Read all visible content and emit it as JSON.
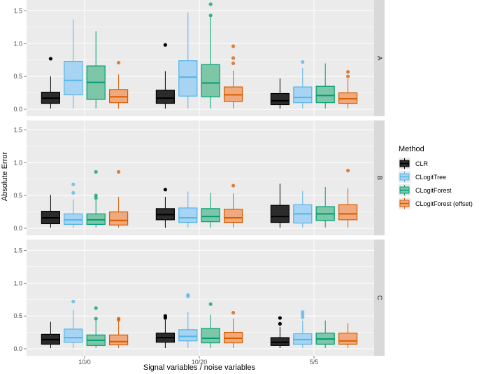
{
  "chart_data": {
    "type": "boxplot",
    "xlabel": "Signal variables / noise variables",
    "ylabel": "Absolute Error",
    "categories": [
      "10/0",
      "10/20",
      "5/5"
    ],
    "ylim": [
      0,
      1.6
    ],
    "yticks": [
      "0.0",
      "0.5",
      "1.0",
      "1.5"
    ],
    "legend": {
      "title": "Method",
      "position": "right",
      "items": [
        {
          "label": "CLR",
          "fill": "#2b2b2b",
          "stroke": "#000000"
        },
        {
          "label": "CLogitTree",
          "fill": "#a6d4f2",
          "stroke": "#56b4e9"
        },
        {
          "label": "CLogitForest",
          "fill": "#7dc6a8",
          "stroke": "#009e73"
        },
        {
          "label": "CLogitForest (offset)",
          "fill": "#f0a97c",
          "stroke": "#d55e00"
        }
      ]
    },
    "facets": [
      {
        "label": "A",
        "groups": [
          {
            "category": "10/0",
            "boxes": [
              {
                "q1": 0.09,
                "median": 0.17,
                "q3": 0.26,
                "lo": 0.01,
                "hi": 0.5,
                "outliers": [
                  0.77
                ]
              },
              {
                "q1": 0.22,
                "median": 0.44,
                "q3": 0.73,
                "lo": 0.01,
                "hi": 1.37,
                "outliers": []
              },
              {
                "q1": 0.15,
                "median": 0.41,
                "q3": 0.66,
                "lo": 0.01,
                "hi": 1.19,
                "outliers": []
              },
              {
                "q1": 0.1,
                "median": 0.19,
                "q3": 0.3,
                "lo": 0.01,
                "hi": 0.53,
                "outliers": [
                  0.71
                ]
              }
            ]
          },
          {
            "category": "10/20",
            "boxes": [
              {
                "q1": 0.09,
                "median": 0.17,
                "q3": 0.29,
                "lo": 0.01,
                "hi": 0.58,
                "outliers": [
                  0.98
                ]
              },
              {
                "q1": 0.2,
                "median": 0.49,
                "q3": 0.74,
                "lo": 0.01,
                "hi": 1.47,
                "outliers": []
              },
              {
                "q1": 0.19,
                "median": 0.4,
                "q3": 0.68,
                "lo": 0.01,
                "hi": 1.4,
                "outliers": [
                  1.43,
                  1.6
                ]
              },
              {
                "q1": 0.12,
                "median": 0.22,
                "q3": 0.34,
                "lo": 0.01,
                "hi": 0.59,
                "outliers": [
                  0.7,
                  0.78,
                  0.96
                ]
              }
            ]
          },
          {
            "category": "5/5",
            "boxes": [
              {
                "q1": 0.07,
                "median": 0.13,
                "q3": 0.24,
                "lo": 0.01,
                "hi": 0.47,
                "outliers": []
              },
              {
                "q1": 0.1,
                "median": 0.18,
                "q3": 0.34,
                "lo": 0.01,
                "hi": 0.63,
                "outliers": [
                  0.72
                ]
              },
              {
                "q1": 0.1,
                "median": 0.21,
                "q3": 0.35,
                "lo": 0.01,
                "hi": 0.7,
                "outliers": []
              },
              {
                "q1": 0.09,
                "median": 0.16,
                "q3": 0.25,
                "lo": 0.01,
                "hi": 0.46,
                "outliers": [
                  0.5,
                  0.57
                ]
              }
            ]
          }
        ]
      },
      {
        "label": "B",
        "groups": [
          {
            "category": "10/0",
            "boxes": [
              {
                "q1": 0.07,
                "median": 0.16,
                "q3": 0.26,
                "lo": 0.01,
                "hi": 0.51,
                "outliers": []
              },
              {
                "q1": 0.06,
                "median": 0.13,
                "q3": 0.22,
                "lo": 0.01,
                "hi": 0.44,
                "outliers": [
                  0.54,
                  0.67
                ]
              },
              {
                "q1": 0.06,
                "median": 0.13,
                "q3": 0.22,
                "lo": 0.01,
                "hi": 0.43,
                "outliers": [
                  0.46,
                  0.5,
                  0.86
                ]
              },
              {
                "q1": 0.05,
                "median": 0.12,
                "q3": 0.25,
                "lo": 0.01,
                "hi": 0.48,
                "outliers": [
                  0.86
                ]
              }
            ]
          },
          {
            "category": "10/20",
            "boxes": [
              {
                "q1": 0.13,
                "median": 0.21,
                "q3": 0.3,
                "lo": 0.01,
                "hi": 0.48,
                "outliers": [
                  0.59
                ]
              },
              {
                "q1": 0.09,
                "median": 0.16,
                "q3": 0.31,
                "lo": 0.01,
                "hi": 0.56,
                "outliers": []
              },
              {
                "q1": 0.1,
                "median": 0.18,
                "q3": 0.3,
                "lo": 0.01,
                "hi": 0.54,
                "outliers": []
              },
              {
                "q1": 0.09,
                "median": 0.16,
                "q3": 0.29,
                "lo": 0.01,
                "hi": 0.53,
                "outliers": [
                  0.65
                ]
              }
            ]
          },
          {
            "category": "5/5",
            "boxes": [
              {
                "q1": 0.09,
                "median": 0.18,
                "q3": 0.35,
                "lo": 0.01,
                "hi": 0.68,
                "outliers": []
              },
              {
                "q1": 0.08,
                "median": 0.22,
                "q3": 0.36,
                "lo": 0.01,
                "hi": 0.57,
                "outliers": []
              },
              {
                "q1": 0.12,
                "median": 0.22,
                "q3": 0.33,
                "lo": 0.01,
                "hi": 0.63,
                "outliers": []
              },
              {
                "q1": 0.13,
                "median": 0.22,
                "q3": 0.36,
                "lo": 0.01,
                "hi": 0.61,
                "outliers": [
                  0.88
                ]
              }
            ]
          }
        ]
      },
      {
        "label": "C",
        "groups": [
          {
            "category": "10/0",
            "boxes": [
              {
                "q1": 0.07,
                "median": 0.14,
                "q3": 0.22,
                "lo": 0.01,
                "hi": 0.41,
                "outliers": []
              },
              {
                "q1": 0.1,
                "median": 0.17,
                "q3": 0.3,
                "lo": 0.01,
                "hi": 0.59,
                "outliers": [
                  0.72
                ]
              },
              {
                "q1": 0.05,
                "median": 0.13,
                "q3": 0.21,
                "lo": 0.01,
                "hi": 0.45,
                "outliers": [
                  0.46,
                  0.62
                ]
              },
              {
                "q1": 0.06,
                "median": 0.11,
                "q3": 0.21,
                "lo": 0.01,
                "hi": 0.42,
                "outliers": [
                  0.44,
                  0.46
                ]
              }
            ]
          },
          {
            "category": "10/20",
            "boxes": [
              {
                "q1": 0.1,
                "median": 0.17,
                "q3": 0.24,
                "lo": 0.01,
                "hi": 0.44,
                "outliers": [
                  0.47,
                  0.5
                ]
              },
              {
                "q1": 0.12,
                "median": 0.19,
                "q3": 0.29,
                "lo": 0.01,
                "hi": 0.56,
                "outliers": [
                  0.8,
                  0.82
                ]
              },
              {
                "q1": 0.09,
                "median": 0.16,
                "q3": 0.31,
                "lo": 0.01,
                "hi": 0.52,
                "outliers": [
                  0.68
                ]
              },
              {
                "q1": 0.09,
                "median": 0.16,
                "q3": 0.25,
                "lo": 0.01,
                "hi": 0.46,
                "outliers": [
                  0.55
                ]
              }
            ]
          },
          {
            "category": "5/5",
            "boxes": [
              {
                "q1": 0.05,
                "median": 0.1,
                "q3": 0.17,
                "lo": 0.01,
                "hi": 0.33,
                "outliers": [
                  0.38,
                  0.47
                ]
              },
              {
                "q1": 0.07,
                "median": 0.14,
                "q3": 0.23,
                "lo": 0.01,
                "hi": 0.43,
                "outliers": [
                  0.48,
                  0.52,
                  0.56
                ]
              },
              {
                "q1": 0.07,
                "median": 0.15,
                "q3": 0.24,
                "lo": 0.01,
                "hi": 0.43,
                "outliers": []
              },
              {
                "q1": 0.07,
                "median": 0.12,
                "q3": 0.24,
                "lo": 0.01,
                "hi": 0.39,
                "outliers": []
              }
            ]
          }
        ]
      }
    ]
  }
}
